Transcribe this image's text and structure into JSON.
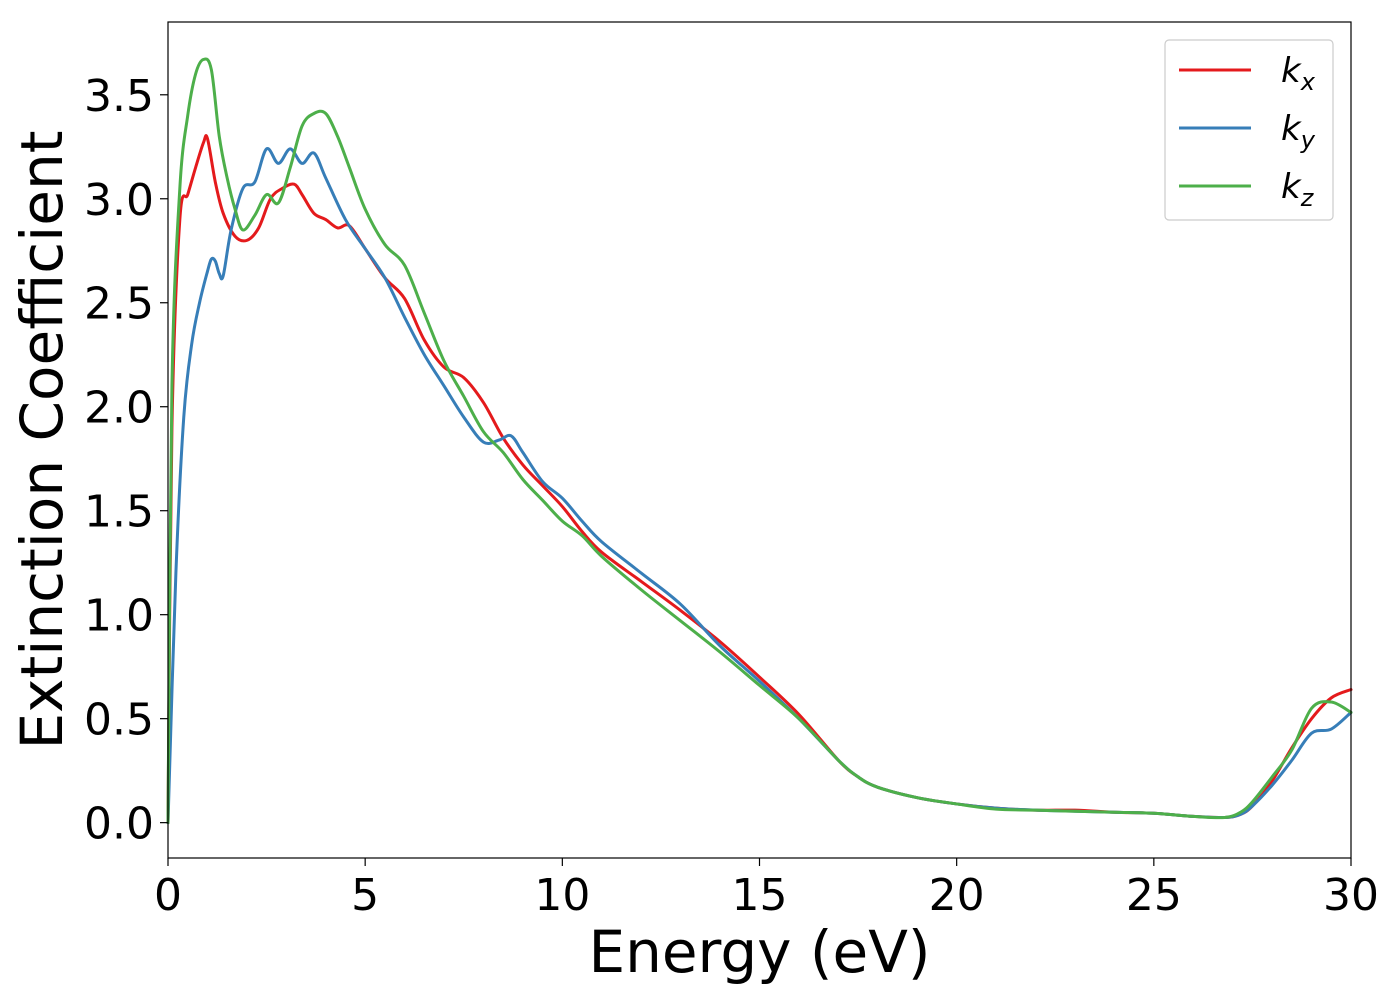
{
  "chart_data": {
    "type": "line",
    "xlabel": "Energy (eV)",
    "ylabel": "Extinction Coefficient",
    "xlim": [
      0,
      30
    ],
    "ylim": [
      -0.17,
      3.85
    ],
    "xticks": [
      0,
      5,
      10,
      15,
      20,
      25,
      30
    ],
    "xtick_labels": [
      "0",
      "5",
      "10",
      "15",
      "20",
      "25",
      "30"
    ],
    "yticks": [
      0.0,
      0.5,
      1.0,
      1.5,
      2.0,
      2.5,
      3.0,
      3.5
    ],
    "ytick_labels": [
      "0.0",
      "0.5",
      "1.0",
      "1.5",
      "2.0",
      "2.5",
      "3.0",
      "3.5"
    ],
    "grid": false,
    "legend_position": "top-right",
    "series": [
      {
        "name": "k_x",
        "label_base": "k",
        "label_sub": "x",
        "color": "#e41a1c",
        "x": [
          0.0,
          0.1,
          0.3,
          0.5,
          0.7,
          0.9,
          1.0,
          1.2,
          1.4,
          1.7,
          2.0,
          2.3,
          2.6,
          2.9,
          3.2,
          3.4,
          3.7,
          4.0,
          4.3,
          4.6,
          5.0,
          5.5,
          6.0,
          6.5,
          7.0,
          7.5,
          8.0,
          8.5,
          9.0,
          9.5,
          10.0,
          10.5,
          11.0,
          12.0,
          13.0,
          14.0,
          15.0,
          16.0,
          17.0,
          17.5,
          18.0,
          19.0,
          20.0,
          21.0,
          22.0,
          23.0,
          24.0,
          25.0,
          26.0,
          26.8,
          27.2,
          27.5,
          28.0,
          28.5,
          29.0,
          29.5,
          30.0
        ],
        "y": [
          0.0,
          1.9,
          2.9,
          3.02,
          3.15,
          3.27,
          3.29,
          3.08,
          2.93,
          2.82,
          2.8,
          2.86,
          3.0,
          3.05,
          3.07,
          3.02,
          2.93,
          2.9,
          2.86,
          2.87,
          2.76,
          2.62,
          2.52,
          2.32,
          2.19,
          2.14,
          2.02,
          1.85,
          1.72,
          1.62,
          1.52,
          1.4,
          1.3,
          1.16,
          1.02,
          0.87,
          0.7,
          0.52,
          0.3,
          0.22,
          0.17,
          0.12,
          0.09,
          0.07,
          0.06,
          0.06,
          0.05,
          0.045,
          0.03,
          0.025,
          0.04,
          0.08,
          0.2,
          0.36,
          0.5,
          0.6,
          0.64
        ]
      },
      {
        "name": "k_y",
        "label_base": "k",
        "label_sub": "y",
        "color": "#377eb8",
        "x": [
          0.0,
          0.2,
          0.4,
          0.6,
          0.8,
          1.0,
          1.1,
          1.2,
          1.3,
          1.4,
          1.6,
          1.9,
          2.2,
          2.5,
          2.8,
          3.1,
          3.4,
          3.7,
          4.0,
          4.5,
          5.0,
          5.5,
          6.0,
          6.5,
          7.0,
          7.5,
          8.0,
          8.4,
          8.7,
          9.0,
          9.5,
          10.0,
          10.5,
          11.0,
          12.0,
          13.0,
          14.0,
          15.0,
          16.0,
          17.0,
          17.5,
          18.0,
          19.0,
          20.0,
          21.0,
          22.0,
          23.0,
          24.0,
          25.0,
          26.0,
          26.8,
          27.2,
          27.5,
          28.0,
          28.5,
          29.0,
          29.5,
          30.0
        ],
        "y": [
          0.0,
          1.2,
          1.95,
          2.3,
          2.5,
          2.65,
          2.71,
          2.7,
          2.64,
          2.63,
          2.85,
          3.05,
          3.08,
          3.24,
          3.17,
          3.24,
          3.17,
          3.22,
          3.1,
          2.9,
          2.76,
          2.62,
          2.43,
          2.25,
          2.1,
          1.95,
          1.83,
          1.84,
          1.86,
          1.78,
          1.64,
          1.56,
          1.45,
          1.35,
          1.2,
          1.05,
          0.85,
          0.68,
          0.5,
          0.3,
          0.22,
          0.17,
          0.12,
          0.09,
          0.07,
          0.06,
          0.055,
          0.05,
          0.045,
          0.03,
          0.025,
          0.04,
          0.08,
          0.18,
          0.3,
          0.43,
          0.45,
          0.53
        ]
      },
      {
        "name": "k_z",
        "label_base": "k",
        "label_sub": "z",
        "color": "#4daf4a",
        "x": [
          0.0,
          0.1,
          0.3,
          0.5,
          0.7,
          0.9,
          1.1,
          1.3,
          1.5,
          1.7,
          1.9,
          2.2,
          2.5,
          2.8,
          3.1,
          3.4,
          3.7,
          4.0,
          4.3,
          4.6,
          5.0,
          5.5,
          6.0,
          6.5,
          7.0,
          7.5,
          8.0,
          8.5,
          9.0,
          9.5,
          10.0,
          10.5,
          11.0,
          12.0,
          13.0,
          14.0,
          15.0,
          16.0,
          17.0,
          17.5,
          18.0,
          19.0,
          20.0,
          21.0,
          22.0,
          23.0,
          24.0,
          25.0,
          26.0,
          26.8,
          27.2,
          27.5,
          28.0,
          28.5,
          29.0,
          29.5,
          30.0
        ],
        "y": [
          0.0,
          2.1,
          3.05,
          3.4,
          3.6,
          3.67,
          3.62,
          3.3,
          3.1,
          2.95,
          2.85,
          2.92,
          3.02,
          2.98,
          3.15,
          3.35,
          3.41,
          3.41,
          3.3,
          3.15,
          2.95,
          2.78,
          2.68,
          2.45,
          2.22,
          2.05,
          1.88,
          1.78,
          1.65,
          1.55,
          1.45,
          1.38,
          1.28,
          1.12,
          0.97,
          0.82,
          0.66,
          0.5,
          0.3,
          0.22,
          0.17,
          0.12,
          0.09,
          0.065,
          0.06,
          0.055,
          0.05,
          0.045,
          0.03,
          0.025,
          0.05,
          0.1,
          0.22,
          0.35,
          0.55,
          0.58,
          0.53
        ]
      }
    ]
  }
}
